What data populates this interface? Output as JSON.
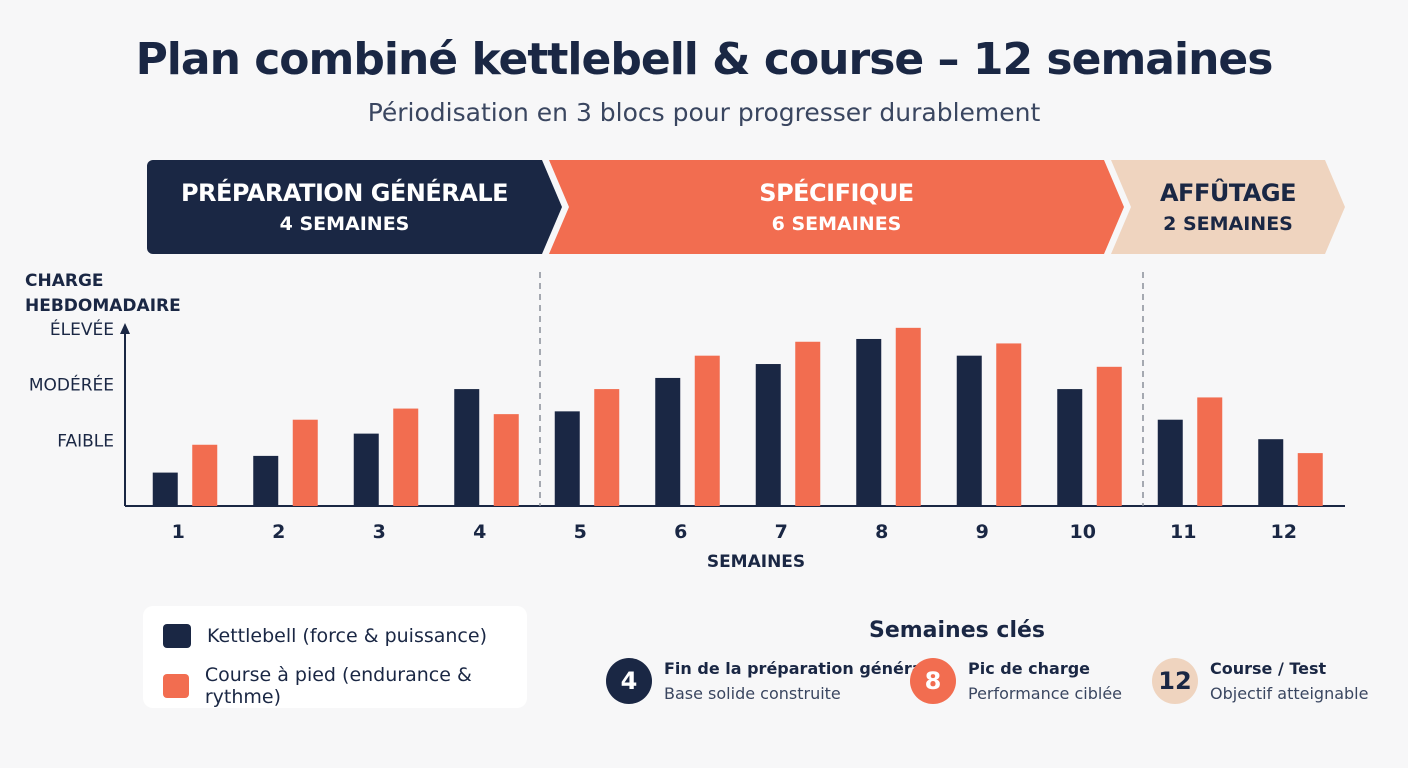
{
  "title": "Plan combiné kettlebell & course – 12 semaines",
  "subtitle": "Périodisation en 3 blocs pour progresser durablement",
  "phases": [
    {
      "name": "PRÉPARATION GÉNÉRALE",
      "duration": "4 SEMAINES",
      "color": "#1a2744"
    },
    {
      "name": "SPÉCIFIQUE",
      "duration": "6 SEMAINES",
      "color": "#f26d50"
    },
    {
      "name": "AFFÛTAGE",
      "duration": "2 SEMAINES",
      "color": "#efd4bf"
    }
  ],
  "chart_data": {
    "type": "bar",
    "ylabel_line1": "CHARGE",
    "ylabel_line2": "HEBDOMADAIRE",
    "xlabel": "SEMAINES",
    "y_levels": [
      {
        "label": "FAIBLE",
        "value": 1
      },
      {
        "label": "MODÉRÉE",
        "value": 2
      },
      {
        "label": "ÉLEVÉE",
        "value": 3
      }
    ],
    "ylim": [
      0,
      3.7
    ],
    "categories": [
      "1",
      "2",
      "3",
      "4",
      "5",
      "6",
      "7",
      "8",
      "9",
      "10",
      "11",
      "12"
    ],
    "series": [
      {
        "name": "Kettlebell (force & puissance)",
        "color": "#1a2744",
        "values": [
          0.6,
          0.9,
          1.3,
          2.1,
          1.7,
          2.3,
          2.55,
          3.0,
          2.7,
          2.1,
          1.55,
          1.2
        ]
      },
      {
        "name": "Course à pied (endurance & rythme)",
        "color": "#f26d50",
        "values": [
          1.1,
          1.55,
          1.75,
          1.65,
          2.1,
          2.7,
          2.95,
          3.2,
          2.92,
          2.5,
          1.95,
          0.95
        ]
      }
    ],
    "phase_boundaries_after_weeks": [
      4,
      10
    ],
    "grid": false,
    "legend_position": "bottom-left"
  },
  "key_weeks": {
    "title": "Semaines clés",
    "items": [
      {
        "number": "4",
        "label": "Fin de la préparation générale",
        "sub": "Base solide construite",
        "bg": "#1a2744",
        "fg": "#ffffff"
      },
      {
        "number": "8",
        "label": "Pic de charge",
        "sub": "Performance ciblée",
        "bg": "#f26d50",
        "fg": "#ffffff"
      },
      {
        "number": "12",
        "label": "Course / Test",
        "sub": "Objectif atteignable",
        "bg": "#efd4bf",
        "fg": "#1a2744"
      }
    ]
  }
}
